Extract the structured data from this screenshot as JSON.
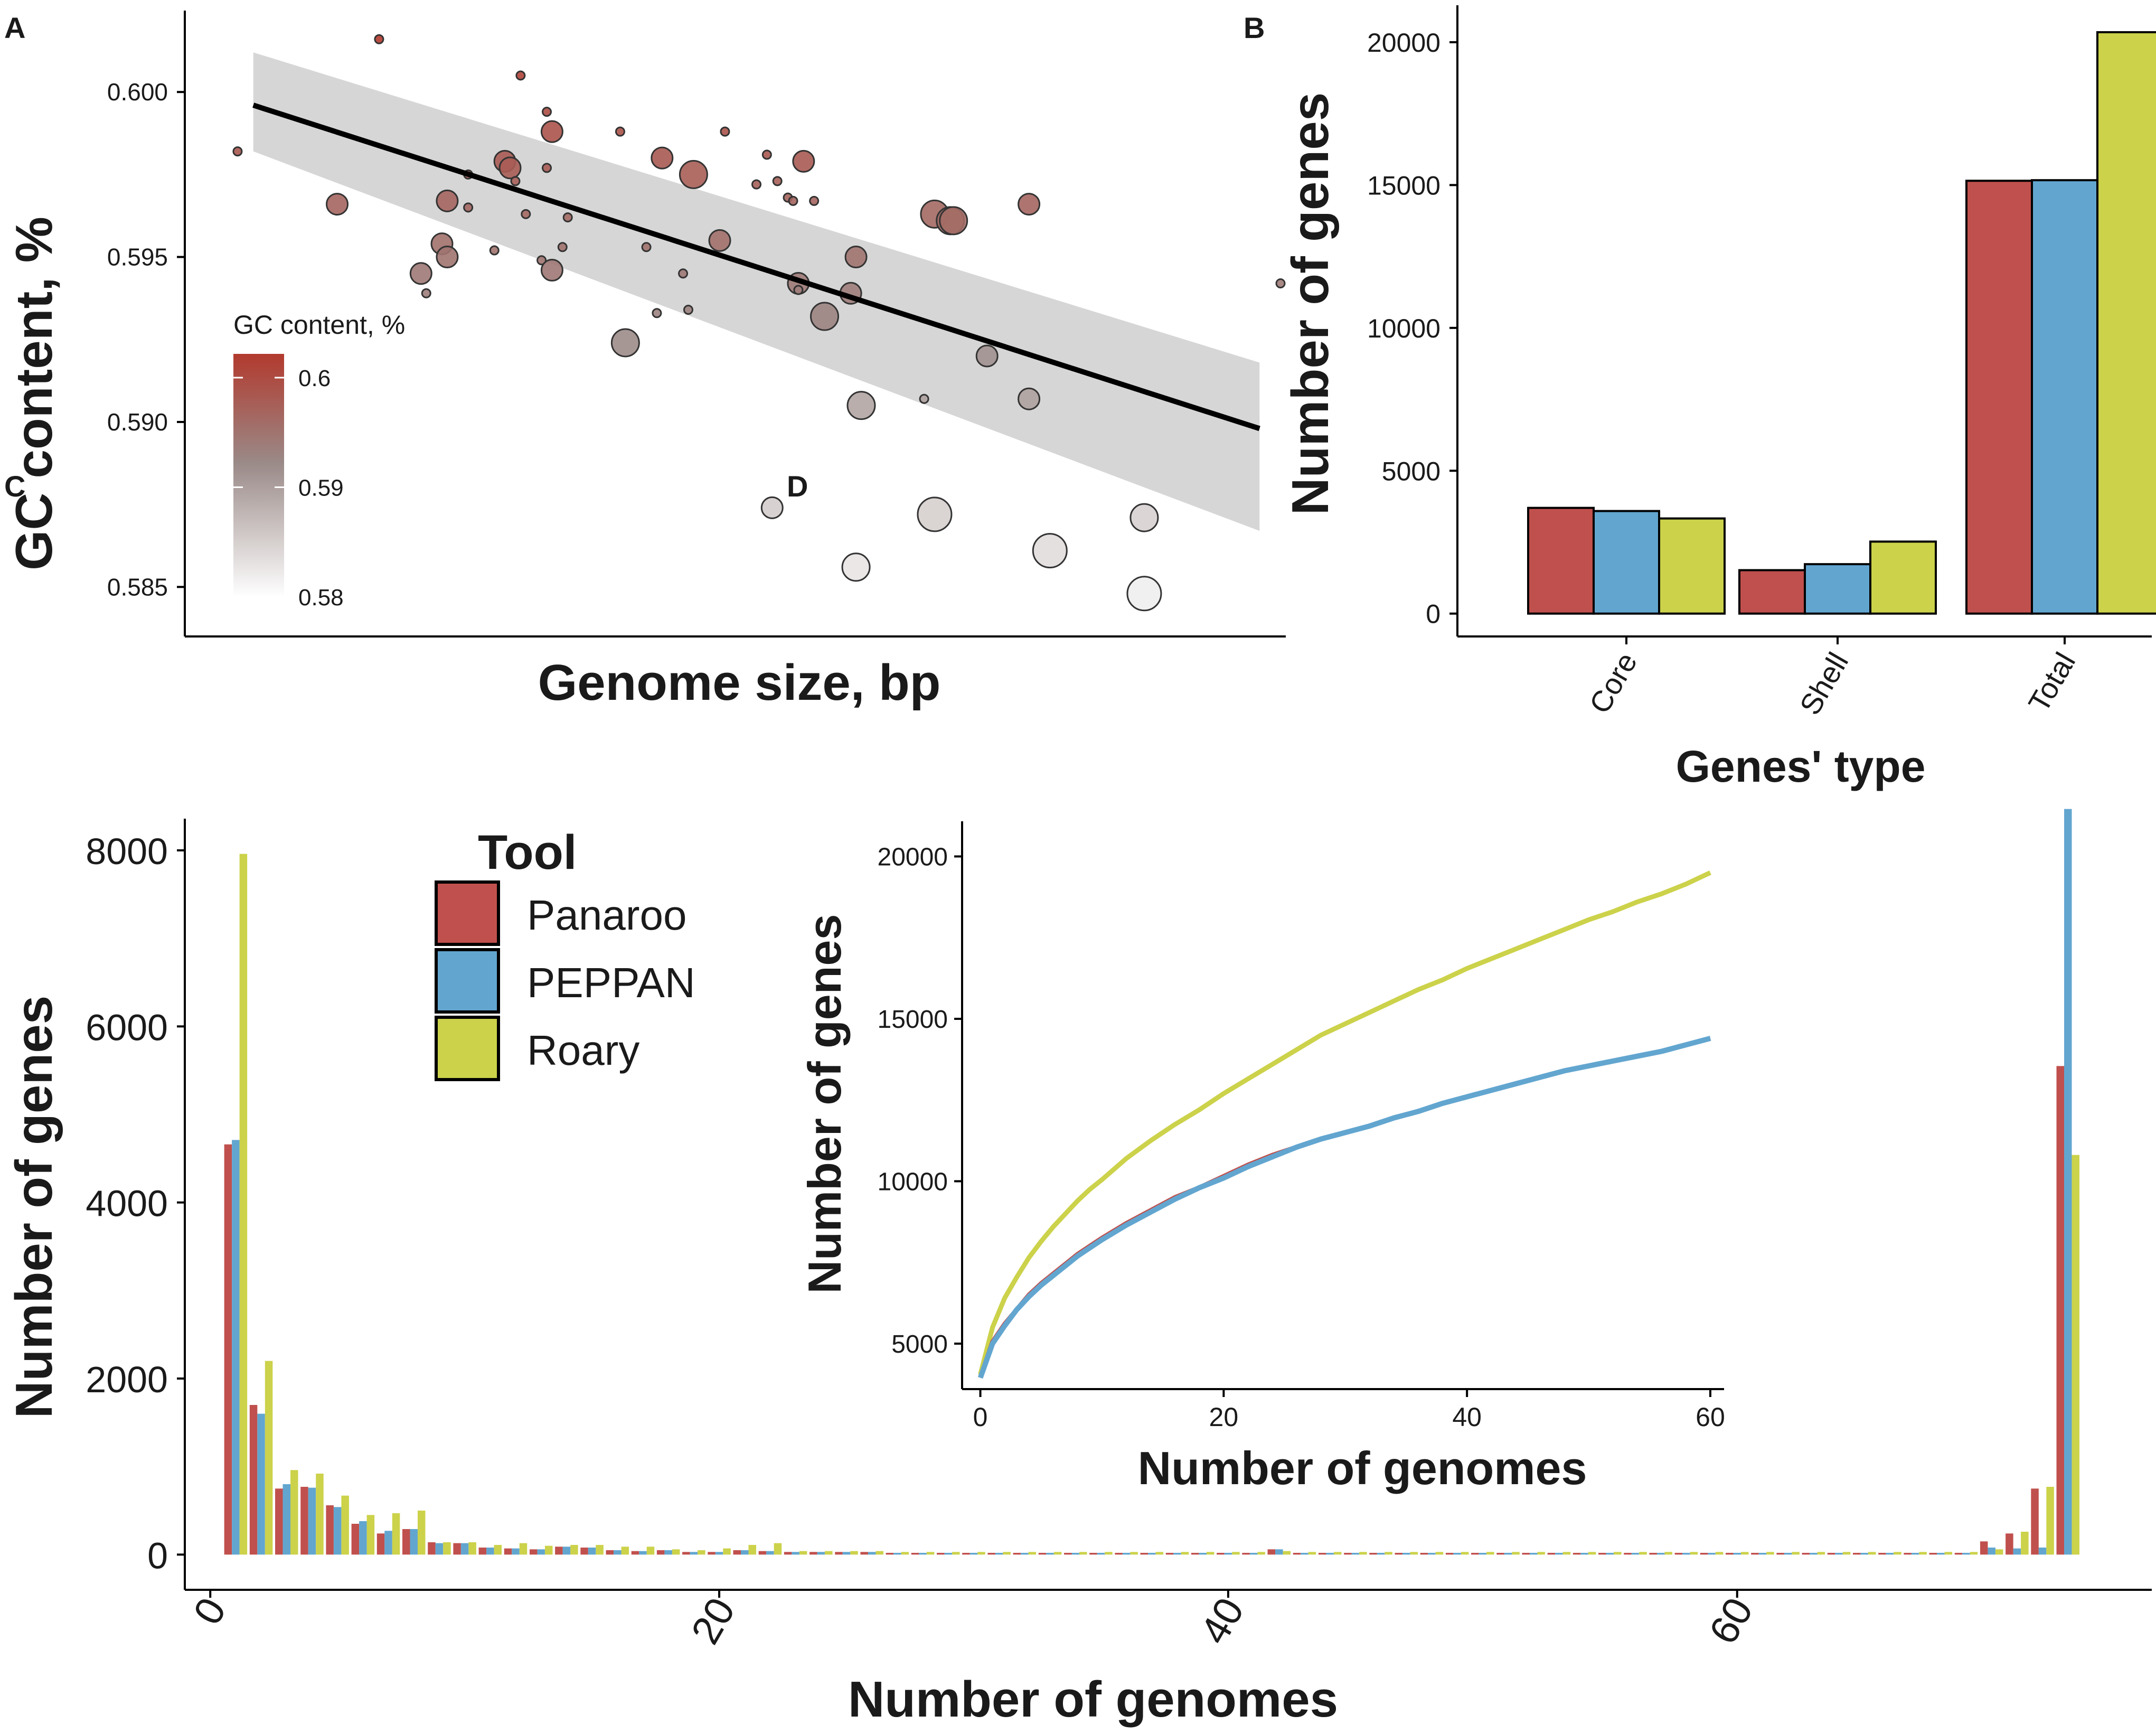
{
  "panels": {
    "a": {
      "letter": "A"
    },
    "b": {
      "letter": "B"
    },
    "c": {
      "letter": "C"
    },
    "d": {
      "letter": "D"
    }
  },
  "colors": {
    "panaroo": "#c0504d",
    "peppan": "#62a6d0",
    "roary": "#ccd24a",
    "gc_high": "#b23a2e",
    "gc_low": "#ffffff",
    "ribbon": "#d6d6d6"
  },
  "chart_data": [
    {
      "id": "A",
      "type": "scatter",
      "title": "",
      "xlabel": "Genome size, bp",
      "ylabel": "GC content, %",
      "xlim": [
        0,
        100
      ],
      "ylim": [
        0.5835,
        0.6025
      ],
      "yticks": [
        0.585,
        0.59,
        0.595,
        0.6
      ],
      "ytick_labels": [
        "0.585",
        "0.590",
        "0.595",
        "0.600"
      ],
      "legend": {
        "title": "GC content, %",
        "labels": [
          "0.6",
          "0.59",
          "0.58"
        ],
        "values": [
          0.6,
          0.59,
          0.58
        ],
        "placement": "left-middle"
      },
      "trend": {
        "x": [
          2,
          98
        ],
        "y": [
          0.5996,
          0.5898
        ],
        "ci_lo_start": 0.5982,
        "ci_hi_start": 0.6012,
        "ci_lo_end": 0.5867,
        "ci_hi_end": 0.5918
      },
      "points": [
        {
          "x": 0.5,
          "y": 0.5982,
          "s": 1
        },
        {
          "x": 14,
          "y": 0.6016,
          "s": 1
        },
        {
          "x": 10,
          "y": 0.5966,
          "s": 3
        },
        {
          "x": 18,
          "y": 0.5945,
          "s": 3
        },
        {
          "x": 18.5,
          "y": 0.5939,
          "s": 1
        },
        {
          "x": 20,
          "y": 0.5954,
          "s": 3
        },
        {
          "x": 20.5,
          "y": 0.595,
          "s": 3
        },
        {
          "x": 20.5,
          "y": 0.5967,
          "s": 3
        },
        {
          "x": 22.5,
          "y": 0.5965,
          "s": 1
        },
        {
          "x": 22.5,
          "y": 0.5975,
          "s": 1
        },
        {
          "x": 25,
          "y": 0.5952,
          "s": 1
        },
        {
          "x": 26,
          "y": 0.5979,
          "s": 3
        },
        {
          "x": 26.5,
          "y": 0.5977,
          "s": 3
        },
        {
          "x": 27,
          "y": 0.5973,
          "s": 1
        },
        {
          "x": 27.5,
          "y": 0.6005,
          "s": 1
        },
        {
          "x": 28,
          "y": 0.5963,
          "s": 1
        },
        {
          "x": 30,
          "y": 0.5977,
          "s": 1
        },
        {
          "x": 30,
          "y": 0.5994,
          "s": 1
        },
        {
          "x": 29.5,
          "y": 0.5949,
          "s": 1
        },
        {
          "x": 30.5,
          "y": 0.5946,
          "s": 3
        },
        {
          "x": 30.5,
          "y": 0.5988,
          "s": 3
        },
        {
          "x": 31.5,
          "y": 0.5953,
          "s": 1
        },
        {
          "x": 32,
          "y": 0.5962,
          "s": 1
        },
        {
          "x": 37,
          "y": 0.5988,
          "s": 1
        },
        {
          "x": 37.5,
          "y": 0.5924,
          "s": 4
        },
        {
          "x": 39.5,
          "y": 0.5953,
          "s": 1
        },
        {
          "x": 40.5,
          "y": 0.5933,
          "s": 1
        },
        {
          "x": 41,
          "y": 0.598,
          "s": 3
        },
        {
          "x": 43,
          "y": 0.5945,
          "s": 1
        },
        {
          "x": 43.5,
          "y": 0.5934,
          "s": 1
        },
        {
          "x": 44,
          "y": 0.5975,
          "s": 4
        },
        {
          "x": 46.5,
          "y": 0.5955,
          "s": 3
        },
        {
          "x": 47,
          "y": 0.5988,
          "s": 1
        },
        {
          "x": 50,
          "y": 0.5972,
          "s": 1
        },
        {
          "x": 51,
          "y": 0.5981,
          "s": 1
        },
        {
          "x": 51.5,
          "y": 0.5874,
          "s": 3
        },
        {
          "x": 52,
          "y": 0.5973,
          "s": 1
        },
        {
          "x": 53,
          "y": 0.5968,
          "s": 1
        },
        {
          "x": 53.5,
          "y": 0.5967,
          "s": 1
        },
        {
          "x": 54,
          "y": 0.5942,
          "s": 3
        },
        {
          "x": 54,
          "y": 0.594,
          "s": 1
        },
        {
          "x": 54.5,
          "y": 0.5979,
          "s": 3
        },
        {
          "x": 55.5,
          "y": 0.5967,
          "s": 1
        },
        {
          "x": 56.5,
          "y": 0.5932,
          "s": 4
        },
        {
          "x": 59,
          "y": 0.5939,
          "s": 3
        },
        {
          "x": 59.5,
          "y": 0.595,
          "s": 3
        },
        {
          "x": 59.5,
          "y": 0.5856,
          "s": 4
        },
        {
          "x": 60,
          "y": 0.5905,
          "s": 4
        },
        {
          "x": 66,
          "y": 0.5907,
          "s": 1
        },
        {
          "x": 67,
          "y": 0.5963,
          "s": 4
        },
        {
          "x": 67,
          "y": 0.5872,
          "s": 5
        },
        {
          "x": 68.5,
          "y": 0.5961,
          "s": 4
        },
        {
          "x": 68.8,
          "y": 0.5961,
          "s": 4
        },
        {
          "x": 72,
          "y": 0.592,
          "s": 3
        },
        {
          "x": 76,
          "y": 0.5966,
          "s": 3
        },
        {
          "x": 76,
          "y": 0.5907,
          "s": 3
        },
        {
          "x": 78,
          "y": 0.5861,
          "s": 5
        },
        {
          "x": 87,
          "y": 0.5871,
          "s": 4
        },
        {
          "x": 87,
          "y": 0.5848,
          "s": 5
        },
        {
          "x": 100,
          "y": 0.5942,
          "s": 1
        }
      ]
    },
    {
      "id": "B",
      "type": "bar",
      "title": "",
      "xlabel": "Genes' type",
      "ylabel": "Number of genes",
      "categories": [
        "Core",
        "Shell",
        "Total"
      ],
      "ylim": [
        -800,
        21200
      ],
      "yticks": [
        0,
        5000,
        10000,
        15000,
        20000
      ],
      "ytick_labels": [
        "0",
        "5000",
        "10000",
        "15000",
        "20000"
      ],
      "series": [
        {
          "name": "Panaroo",
          "values": [
            3700,
            1520,
            15150
          ]
        },
        {
          "name": "PEPPAN",
          "values": [
            3590,
            1730,
            15170
          ]
        },
        {
          "name": "Roary",
          "values": [
            3330,
            2520,
            20350
          ]
        }
      ]
    },
    {
      "id": "C",
      "type": "bar",
      "title": "",
      "xlabel": "Number of genomes",
      "ylabel": "Number of genes",
      "xlim": [
        -1,
        73.7
      ],
      "ylim": [
        -400,
        8300
      ],
      "xticks": [
        0,
        20,
        40,
        60
      ],
      "xtick_labels": [
        "0",
        "20",
        "40",
        "60"
      ],
      "yticks": [
        0,
        2000,
        4000,
        6000,
        8000
      ],
      "ytick_labels": [
        "0",
        "2000",
        "4000",
        "6000",
        "8000"
      ],
      "legend": {
        "title": "Tool",
        "labels": [
          "Panaroo",
          "PEPPAN",
          "Roary"
        ],
        "placement": "top-left"
      },
      "x": [
        1,
        2,
        3,
        4,
        5,
        6,
        7,
        8,
        9,
        10,
        11,
        12,
        13,
        14,
        15,
        16,
        17,
        18,
        19,
        20,
        21,
        22,
        23,
        24,
        25,
        26,
        27,
        28,
        29,
        30,
        31,
        32,
        33,
        34,
        35,
        36,
        37,
        38,
        39,
        40,
        41,
        42,
        43,
        44,
        45,
        46,
        47,
        48,
        49,
        50,
        51,
        52,
        53,
        54,
        55,
        56,
        57,
        58,
        59,
        60,
        61,
        62,
        63,
        64,
        65,
        66,
        67,
        68,
        69,
        70,
        71,
        72,
        73
      ],
      "series": [
        {
          "name": "Panaroo",
          "values": [
            4660,
            1700,
            750,
            770,
            560,
            350,
            240,
            290,
            140,
            130,
            80,
            70,
            60,
            90,
            80,
            50,
            40,
            50,
            30,
            30,
            50,
            40,
            30,
            30,
            30,
            30,
            20,
            20,
            20,
            20,
            20,
            20,
            20,
            20,
            20,
            20,
            20,
            20,
            20,
            20,
            20,
            60,
            20,
            20,
            20,
            20,
            20,
            20,
            20,
            20,
            20,
            20,
            20,
            20,
            20,
            20,
            20,
            20,
            20,
            20,
            20,
            20,
            20,
            20,
            20,
            20,
            20,
            20,
            20,
            150,
            240,
            750,
            5550
          ]
        },
        {
          "name": "PEPPAN",
          "values": [
            4710,
            1600,
            800,
            760,
            540,
            380,
            270,
            290,
            130,
            130,
            80,
            70,
            60,
            90,
            80,
            50,
            40,
            50,
            30,
            30,
            50,
            40,
            30,
            30,
            30,
            30,
            20,
            20,
            20,
            20,
            20,
            20,
            20,
            20,
            20,
            20,
            20,
            20,
            20,
            20,
            20,
            60,
            20,
            20,
            20,
            20,
            20,
            20,
            20,
            20,
            20,
            20,
            20,
            20,
            20,
            20,
            20,
            20,
            20,
            20,
            20,
            20,
            20,
            20,
            20,
            20,
            20,
            20,
            20,
            80,
            70,
            80,
            8470
          ]
        },
        {
          "name": "Roary",
          "values": [
            7960,
            2200,
            960,
            920,
            670,
            450,
            470,
            500,
            140,
            140,
            110,
            130,
            100,
            110,
            110,
            90,
            90,
            60,
            50,
            70,
            110,
            130,
            40,
            40,
            40,
            40,
            30,
            30,
            30,
            30,
            30,
            30,
            30,
            30,
            30,
            30,
            30,
            30,
            30,
            30,
            30,
            40,
            30,
            30,
            30,
            30,
            30,
            30,
            30,
            30,
            30,
            30,
            30,
            30,
            30,
            30,
            30,
            30,
            30,
            30,
            30,
            30,
            30,
            30,
            30,
            30,
            30,
            30,
            30,
            60,
            260,
            770,
            4540
          ]
        }
      ]
    },
    {
      "id": "D",
      "type": "line",
      "title": "",
      "xlabel": "Number of genomes",
      "ylabel": "Number of genes",
      "xlim": [
        -1.5,
        61
      ],
      "ylim": [
        3600,
        21000
      ],
      "xticks": [
        0,
        20,
        40,
        60
      ],
      "xtick_labels": [
        "0",
        "20",
        "40",
        "60"
      ],
      "yticks": [
        5000,
        10000,
        15000,
        20000
      ],
      "ytick_labels": [
        "5000",
        "10000",
        "15000",
        "20000"
      ],
      "x": [
        0,
        1,
        2,
        3,
        4,
        5,
        6,
        7,
        8,
        9,
        10,
        12,
        14,
        16,
        18,
        20,
        22,
        24,
        26,
        28,
        30,
        32,
        34,
        36,
        38,
        40,
        42,
        44,
        46,
        48,
        50,
        52,
        54,
        56,
        58,
        60
      ],
      "series": [
        {
          "name": "Panaroo",
          "values": [
            3950,
            5050,
            5600,
            6050,
            6500,
            6850,
            7150,
            7450,
            7750,
            8000,
            8250,
            8700,
            9100,
            9500,
            9800,
            10150,
            10500,
            10800,
            11050,
            11300,
            11500,
            11700,
            11950,
            12150,
            12400,
            12600,
            12800,
            13000,
            13200,
            13400,
            13550,
            13700,
            13850,
            14000,
            14200,
            14400
          ]
        },
        {
          "name": "PEPPAN",
          "values": [
            3950,
            5000,
            5550,
            6050,
            6450,
            6800,
            7100,
            7400,
            7700,
            7950,
            8200,
            8650,
            9050,
            9450,
            9800,
            10100,
            10450,
            10750,
            11050,
            11300,
            11500,
            11700,
            11950,
            12150,
            12400,
            12600,
            12800,
            13000,
            13200,
            13400,
            13550,
            13700,
            13850,
            14000,
            14200,
            14400
          ]
        },
        {
          "name": "Roary",
          "values": [
            4050,
            5500,
            6400,
            7050,
            7650,
            8150,
            8600,
            9000,
            9400,
            9750,
            10050,
            10700,
            11250,
            11750,
            12200,
            12700,
            13150,
            13600,
            14050,
            14500,
            14850,
            15200,
            15550,
            15900,
            16200,
            16550,
            16850,
            17150,
            17450,
            17750,
            18050,
            18300,
            18600,
            18850,
            19150,
            19500
          ]
        }
      ]
    }
  ]
}
